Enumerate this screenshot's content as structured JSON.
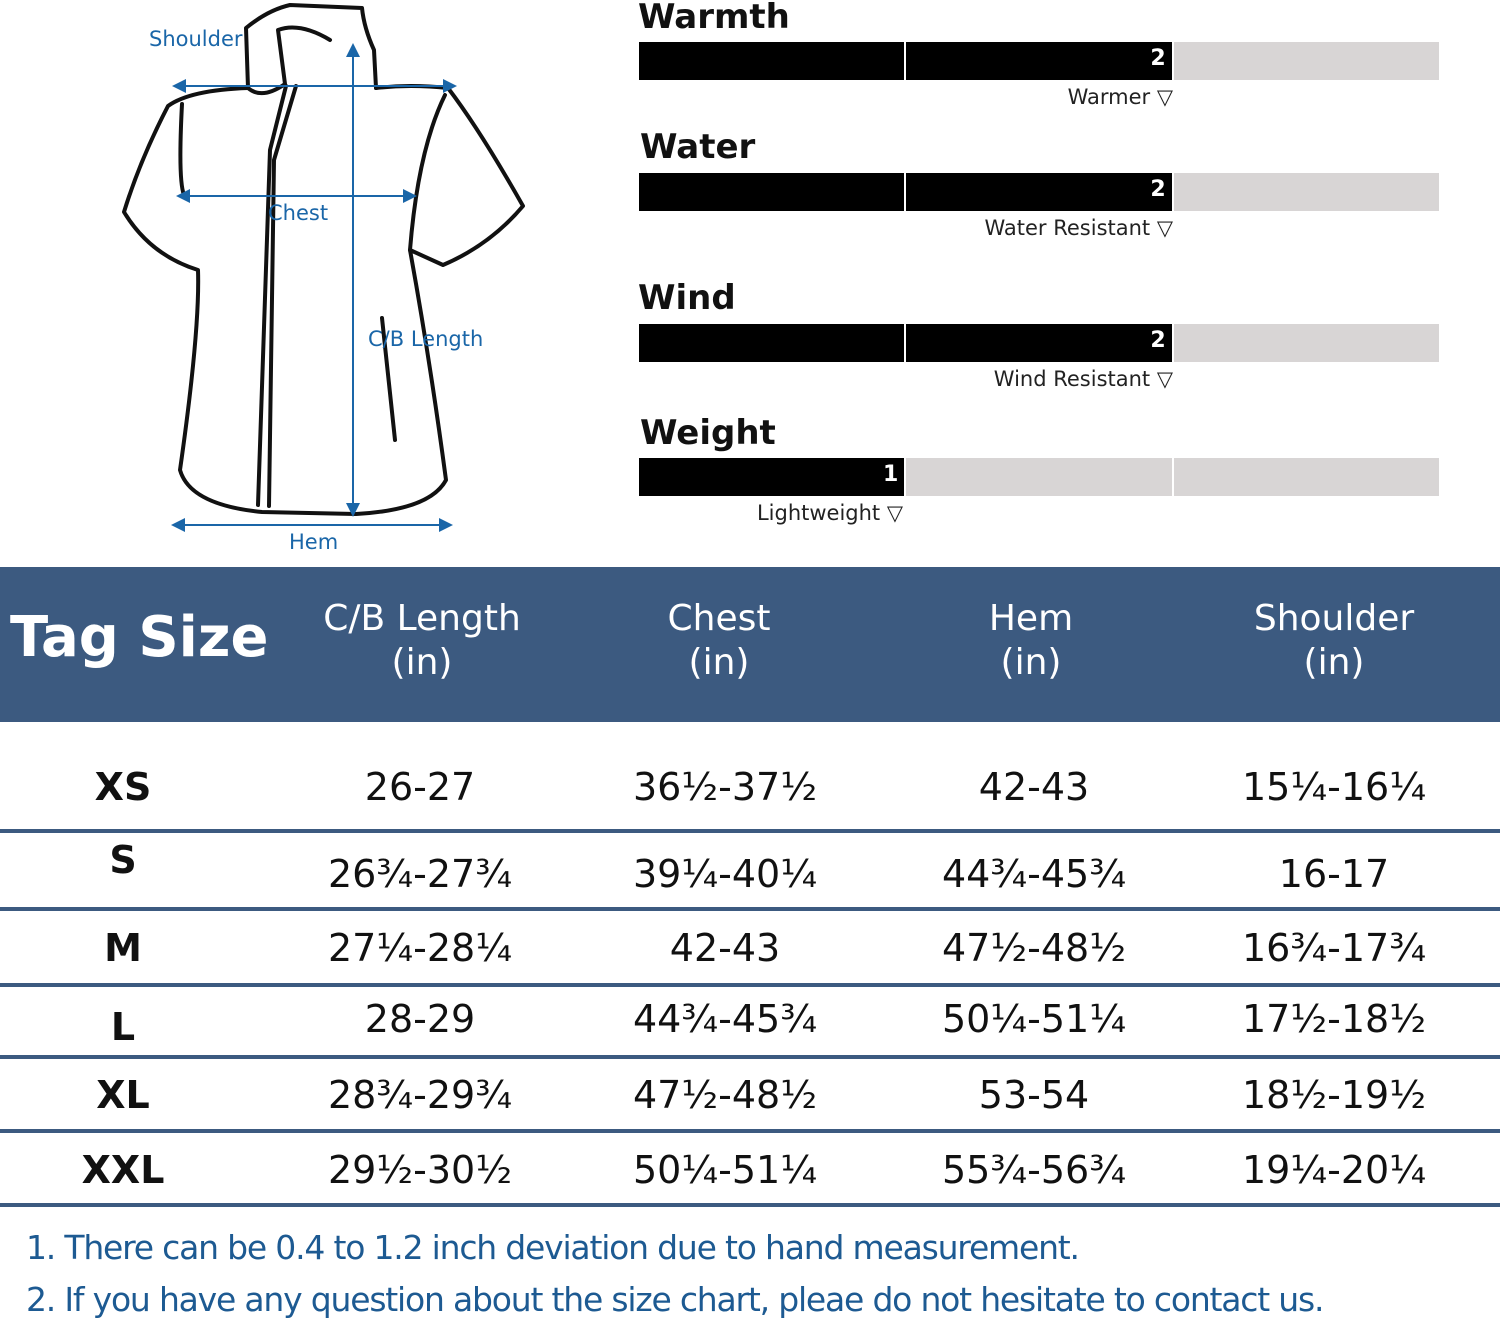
{
  "diagram": {
    "labels": {
      "shoulder": "Shoulder",
      "chest": "Chest",
      "length": "C/B Length",
      "hem": "Hem"
    }
  },
  "ratings": [
    {
      "title": "Warmth",
      "level": 2,
      "max": 3,
      "caption": "Warmer ▽"
    },
    {
      "title": "Water",
      "level": 2,
      "max": 3,
      "caption": "Water Resistant ▽"
    },
    {
      "title": "Wind",
      "level": 2,
      "max": 3,
      "caption": "Wind Resistant ▽"
    },
    {
      "title": "Weight",
      "level": 1,
      "max": 3,
      "caption": "Lightweight ▽"
    }
  ],
  "table": {
    "header": {
      "tag_size": "Tag Size",
      "columns": [
        {
          "name": "C/B Length",
          "unit": "(in)"
        },
        {
          "name": "Chest",
          "unit": "(in)"
        },
        {
          "name": "Hem",
          "unit": "(in)"
        },
        {
          "name": "Shoulder",
          "unit": "(in)"
        }
      ]
    },
    "rows": [
      {
        "size": "XS",
        "cb_length": "26-27",
        "chest": "36½-37½",
        "hem": "42-43",
        "shoulder": "15¼-16¼"
      },
      {
        "size": "S",
        "cb_length": "26¾-27¾",
        "chest": "39¼-40¼",
        "hem": "44¾-45¾",
        "shoulder": "16-17"
      },
      {
        "size": "M",
        "cb_length": "27¼-28¼",
        "chest": "42-43",
        "hem": "47½-48½",
        "shoulder": "16¾-17¾"
      },
      {
        "size": "L",
        "cb_length": "28-29",
        "chest": "44¾-45¾",
        "hem": "50¼-51¼",
        "shoulder": "17½-18½"
      },
      {
        "size": "XL",
        "cb_length": "28¾-29¾",
        "chest": "47½-48½",
        "hem": "53-54",
        "shoulder": "18½-19½"
      },
      {
        "size": "XXL",
        "cb_length": "29½-30½",
        "chest": "50¼-51¼",
        "hem": "55¾-56¾",
        "shoulder": "19¼-20¼"
      }
    ]
  },
  "notes": [
    "1. There can be 0.4 to 1.2 inch deviation due to hand measurement.",
    "2. If you have any question about the size chart, pleae do not hesitate to contact us."
  ],
  "colors": {
    "header_bg": "#3c5a80",
    "measure_blue": "#1a66a8",
    "note_blue": "#1d5a92",
    "meter_empty": "#d8d5d5",
    "meter_filled": "#000000"
  }
}
